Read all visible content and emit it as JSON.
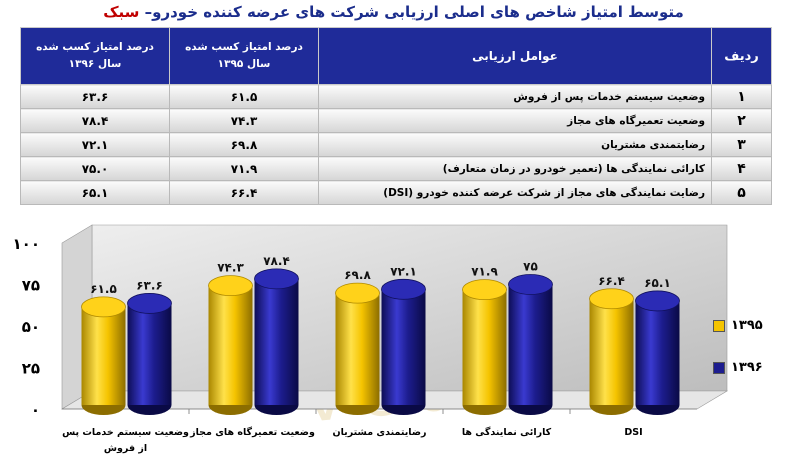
{
  "header": {
    "title_main": "متوسط امتیاز شاخص های اصلی ارزیابی شرکت های عرضه کننده خودرو– ",
    "title_highlight": "سبک"
  },
  "table": {
    "headers": {
      "index": "ردیف",
      "criteria": "عوامل ارزیابی",
      "col1395_line1": "درصد امتیاز کسب شده",
      "col1395_line2": "سال ۱۳۹۵",
      "col1396_line1": "درصد امتیاز کسب شده",
      "col1396_line2": "سال ۱۳۹۶"
    },
    "rows": [
      {
        "index": "۱",
        "criteria": "وضعیت سیستم خدمات پس از فروش",
        "v1395": "۶۱.۵",
        "v1396": "۶۳.۶"
      },
      {
        "index": "۲",
        "criteria": "وضعیت تعمیرگاه های مجاز",
        "v1395": "۷۴.۳",
        "v1396": "۷۸.۴"
      },
      {
        "index": "۳",
        "criteria": "رضایتمندی مشتریان",
        "v1395": "۶۹.۸",
        "v1396": "۷۲.۱"
      },
      {
        "index": "۴",
        "criteria": "کارائی نمایندگی ها (تعمیر خودرو در زمان متعارف)",
        "v1395": "۷۱.۹",
        "v1396": "۷۵.۰"
      },
      {
        "index": "۵",
        "criteria": "رضایت نمایندگی های مجاز از شرکت عرضه کننده خودرو (DSI)",
        "v1395": "۶۶.۴",
        "v1396": "۶۵.۱"
      }
    ]
  },
  "chart_data": {
    "type": "bar",
    "categories": [
      "وضعیت سیستم خدمات پس از فروش",
      "وضعیت تعمیرگاه های مجاز",
      "رضایتمندی مشتریان",
      "کارائی نمایندگی ها",
      "DSI"
    ],
    "series": [
      {
        "name": "۱۳۹۵",
        "values": [
          61.5,
          74.3,
          69.8,
          71.9,
          66.4
        ],
        "labels": [
          "۶۱.۵",
          "۷۴.۳",
          "۶۹.۸",
          "۷۱.۹",
          "۶۶.۴"
        ],
        "color": "#f5c400"
      },
      {
        "name": "۱۳۹۶",
        "values": [
          63.6,
          78.4,
          72.1,
          75.0,
          65.1
        ],
        "labels": [
          "۶۳.۶",
          "۷۸.۴",
          "۷۲.۱",
          "۷۵",
          "۶۵.۱"
        ],
        "color": "#1d1d8f"
      }
    ],
    "ylim": [
      0,
      100
    ],
    "yticks": [
      "۰",
      "۲۵",
      "۵۰",
      "۷۵",
      "۱۰۰"
    ],
    "xlabel": "",
    "ylabel": "",
    "grid": false,
    "legend_position": "right"
  },
  "watermark": {
    "text": "vedaat.ir"
  }
}
